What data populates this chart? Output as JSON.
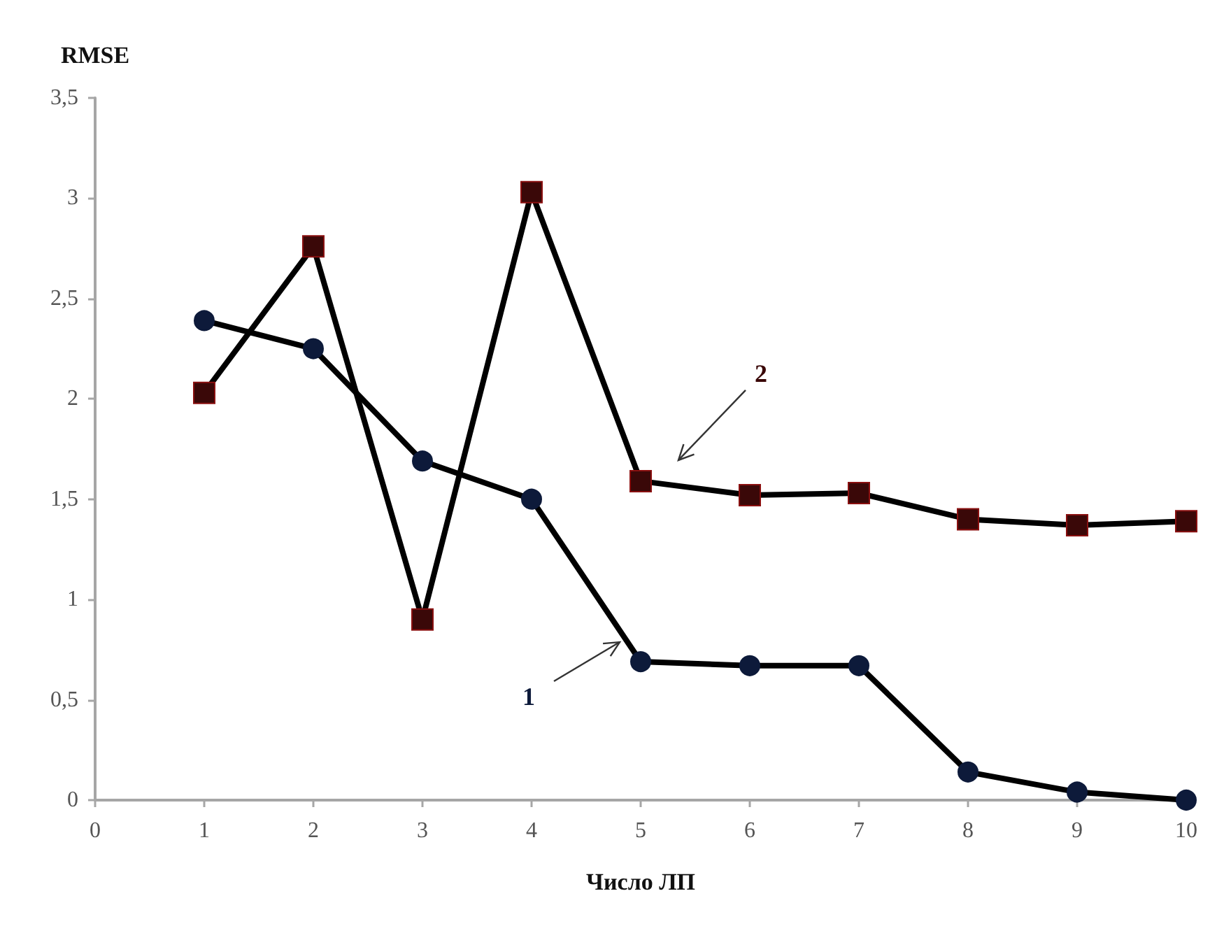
{
  "chart_data": {
    "type": "line",
    "ylabel": "RMSE",
    "xlabel": "Число ЛП",
    "x": [
      1,
      2,
      3,
      4,
      5,
      6,
      7,
      8,
      9,
      10
    ],
    "series": [
      {
        "name": "1",
        "color": "#0d1a3a",
        "marker": "circle",
        "values": [
          2.39,
          2.25,
          1.69,
          1.5,
          0.69,
          0.67,
          0.67,
          0.14,
          0.04,
          0
        ]
      },
      {
        "name": "2",
        "color": "#3a0808",
        "marker": "square",
        "values": [
          2.03,
          2.76,
          0.9,
          3.03,
          1.59,
          1.52,
          1.53,
          1.4,
          1.37,
          1.39
        ]
      }
    ],
    "xlim": [
      0,
      10
    ],
    "xticks": [
      0,
      1,
      2,
      3,
      4,
      5,
      6,
      7,
      8,
      9,
      10
    ],
    "ylim": [
      0,
      3.5
    ],
    "yticks": [
      0,
      {
        "value": 0.5,
        "label": "0,5"
      },
      1,
      {
        "value": 1.5,
        "label": "1,5"
      },
      2,
      {
        "value": 2.5,
        "label": "2,5"
      },
      3,
      {
        "value": 3.5,
        "label": "3,5"
      }
    ],
    "grid": false,
    "legend": false,
    "line_style": "solid"
  }
}
